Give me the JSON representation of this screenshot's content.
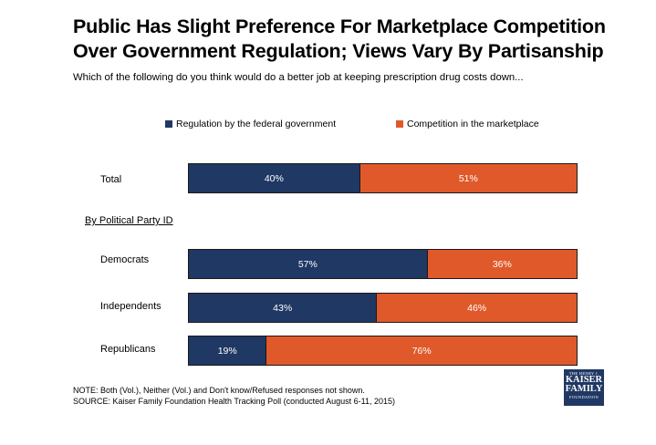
{
  "title": "Public Has Slight Preference For Marketplace Competition Over Government Regulation; Views Vary By Partisanship",
  "subtitle": "Which of the following do you think would do a better job at keeping prescription drug costs down...",
  "colors": {
    "regulation": "#1f3864",
    "competition": "#e0592a"
  },
  "section_label": "By Political Party ID",
  "chart_data": {
    "type": "bar",
    "orientation": "horizontal",
    "stacked": true,
    "categories": [
      "Total",
      "Democrats",
      "Independents",
      "Republicans"
    ],
    "series": [
      {
        "name": "Regulation by the federal government",
        "values": [
          40,
          57,
          43,
          19
        ],
        "labels": [
          "40%",
          "57%",
          "43%",
          "19%"
        ]
      },
      {
        "name": "Competition in the marketplace",
        "values": [
          51,
          36,
          46,
          76
        ],
        "labels": [
          "51%",
          "36%",
          "46%",
          "76%"
        ]
      }
    ],
    "unit": "%",
    "legend_position": "top"
  },
  "notes": {
    "note": "NOTE: Both (Vol.), Neither (Vol.) and Don't know/Refused responses not shown.",
    "source": "SOURCE: Kaiser Family Foundation Health Tracking Poll (conducted August 6-11, 2015)"
  },
  "logo": {
    "line1": "THE HENRY J.",
    "line2": "KAISER",
    "line3": "FAMILY",
    "line4": "FOUNDATION"
  }
}
